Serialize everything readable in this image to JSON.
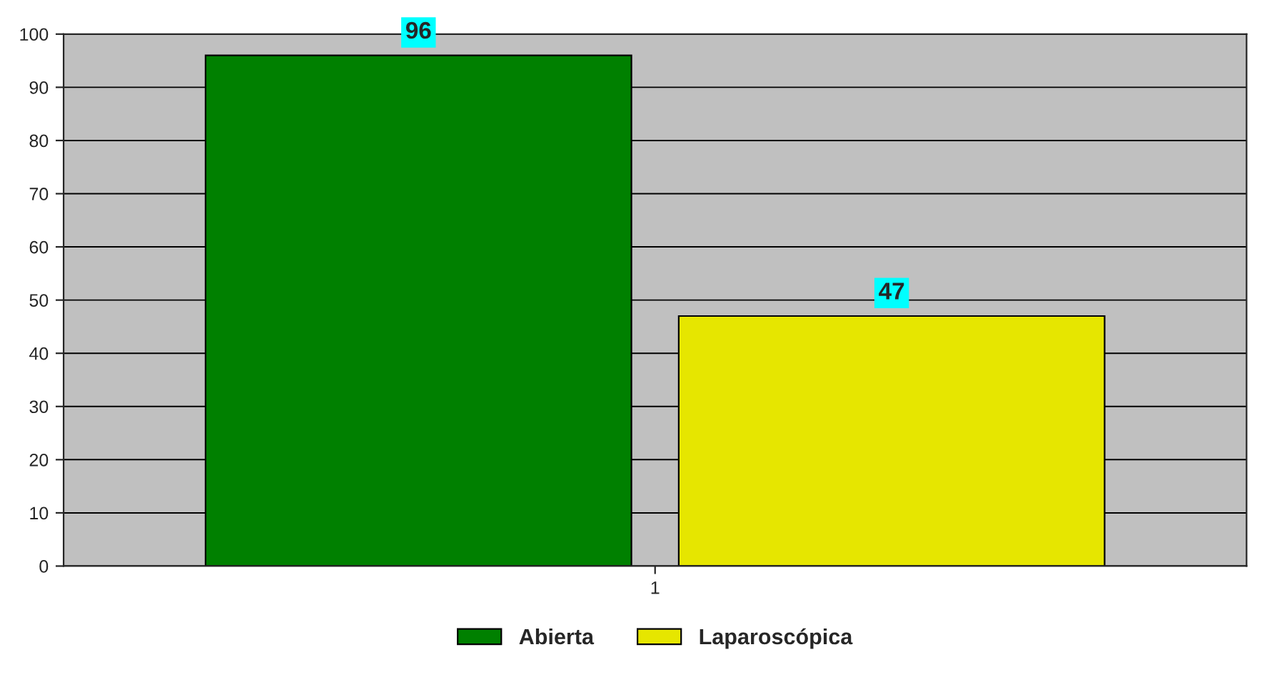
{
  "chart_data": {
    "type": "bar",
    "categories": [
      "1"
    ],
    "series": [
      {
        "name": "Abierta",
        "color": "#008000",
        "values": [
          96
        ]
      },
      {
        "name": "Laparoscópica",
        "color": "#e6e600",
        "values": [
          47
        ]
      }
    ],
    "ylim": [
      0,
      100
    ],
    "yticks": [
      0,
      10,
      20,
      30,
      40,
      50,
      60,
      70,
      80,
      90,
      100
    ],
    "grid": "y",
    "legend": "bottom",
    "data_labels": true
  }
}
